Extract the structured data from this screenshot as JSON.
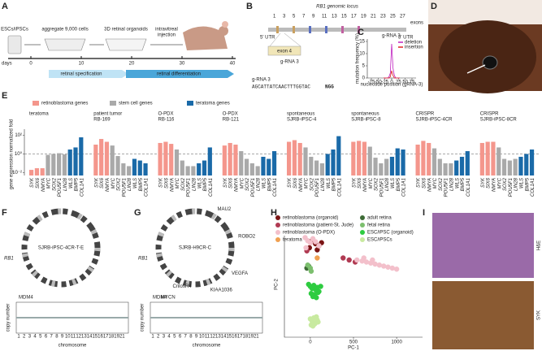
{
  "panel_labels": [
    "A",
    "B",
    "C",
    "D",
    "E",
    "F",
    "G",
    "H",
    "I"
  ],
  "panel_a": {
    "steps": [
      "ESCs/iPSCs",
      "aggregate 9,000 cells",
      "3D retinal organoids"
    ],
    "injection_lines": [
      "intravitreal",
      "injection"
    ],
    "axis_label": "days",
    "ticks": [
      0,
      10,
      20,
      30,
      40
    ],
    "phases": [
      "retinal specification",
      "retinal differentiation"
    ]
  },
  "panel_b": {
    "title": "RB1 genomic locus",
    "exons_label": "exons",
    "exon_numbers": [
      "1",
      "3",
      "5",
      "7",
      "9",
      "11",
      "13",
      "15",
      "17",
      "19",
      "21",
      "23",
      "25",
      "27"
    ],
    "utr5": "5' UTR",
    "utr3": "3' UTR",
    "zoom_exon": "exon 4",
    "grna": "g-RNA 3",
    "sequence_label": "g-RNA 3",
    "sequence": "AGCATTATCAACTTTGGTAC",
    "pam": "NGG"
  },
  "panel_f": {
    "title": "SJRB-iPSC-4CR-T-E",
    "gene": "RB1",
    "annotations": [
      "MDM4"
    ],
    "y_label": "copy number",
    "x_label": "chromosome"
  },
  "panel_g": {
    "title": "SJRB-H9CR-C",
    "gene": "RB1",
    "circos_labels": [
      "MAU2",
      "ROBO2",
      "VEGFA",
      "KIAA1036",
      "CrilosR4"
    ],
    "annotations": [
      "MDM4",
      "MYCN"
    ],
    "y_label": "copy number",
    "x_label": "chromosome"
  },
  "chromosomes": [
    "1",
    "2",
    "3",
    "4",
    "5",
    "6",
    "7",
    "8",
    "9",
    "10",
    "11",
    "12",
    "13",
    "14",
    "15",
    "16",
    "17",
    "18",
    "19",
    "21"
  ],
  "panel_i": {
    "stains": [
      "H&E",
      "SYK"
    ]
  },
  "chart_data": [
    {
      "type": "line",
      "title": "g-RNA 3",
      "x_label": "nucleotide position (gRNA-3)",
      "y_label": "mutation frequency (%)",
      "xlim": [
        -90,
        90
      ],
      "xticks": [
        -75,
        -50,
        -25,
        0,
        25,
        50,
        75
      ],
      "ylim": [
        0,
        16
      ],
      "yticks": [
        0,
        5,
        10,
        15
      ],
      "x": [
        -30,
        -25,
        -20,
        -15,
        -10,
        -5,
        0,
        5,
        10,
        15,
        20,
        25,
        30
      ],
      "series": [
        {
          "name": "deletion",
          "color": "#c020c0",
          "values": [
            0,
            0,
            0,
            0,
            0.5,
            2,
            14,
            4,
            1,
            0,
            0,
            0,
            0
          ]
        },
        {
          "name": "insertion",
          "color": "#e02020",
          "values": [
            0,
            0,
            0,
            0,
            0,
            0.5,
            3,
            1,
            0,
            0,
            0,
            0,
            0
          ]
        }
      ]
    },
    {
      "type": "grouped-bar",
      "y_label": "gene expression normalized fold",
      "log_scale": true,
      "ylim": [
        0.005,
        200
      ],
      "yticks": [
        {
          "value": 0.01,
          "label": "10⁻²"
        },
        {
          "value": 1,
          "label": "10⁰"
        },
        {
          "value": 100,
          "label": "10²"
        }
      ],
      "reference_line": 1,
      "series": [
        {
          "name": "retinoblastoma genes",
          "color": "#f4968c",
          "genes": [
            "SYK",
            "SIX6",
            "NMYA"
          ]
        },
        {
          "name": "stem cell genes",
          "color": "#a9a9a9",
          "genes": [
            "MYC",
            "SOX2",
            "POU5F1",
            "LIN28"
          ]
        },
        {
          "name": "teratoma genes",
          "color": "#1a6aa8",
          "genes": [
            "WLS",
            "BMP5",
            "COL1A1"
          ]
        }
      ],
      "groups": [
        {
          "labels": [
            "teratoma"
          ],
          "values": [
            0.02,
            0.03,
            0.03,
            0.8,
            1,
            1.2,
            0.9,
            3,
            5,
            60
          ]
        },
        {
          "labels": [
            "patient tumor",
            "RB-169"
          ],
          "values": [
            10,
            40,
            20,
            8,
            0.6,
            0.1,
            0.05,
            0.3,
            0.2,
            0.1
          ]
        },
        {
          "labels": [
            "O-PDX",
            "RB-116"
          ],
          "values": [
            15,
            20,
            12,
            3,
            0.2,
            0.05,
            0.05,
            0.1,
            0.2,
            5
          ]
        },
        {
          "labels": [
            "O-PDX",
            "RB-121"
          ],
          "values": [
            8,
            15,
            10,
            2,
            0.3,
            0.1,
            0.05,
            0.5,
            0.3,
            2
          ]
        },
        {
          "labels": [
            "spontaneous",
            "SJRB-iPSC-4"
          ],
          "values": [
            20,
            30,
            15,
            5,
            0.5,
            0.2,
            0.1,
            1,
            3,
            80
          ]
        },
        {
          "labels": [
            "spontaneous",
            "SJRB-iPSC-8"
          ],
          "values": [
            20,
            25,
            20,
            6,
            0.4,
            0.1,
            0.3,
            0.5,
            4,
            3
          ]
        },
        {
          "labels": [
            "CRISPR",
            "SJRB-iPSC-4CR"
          ],
          "values": [
            10,
            25,
            15,
            4,
            0.3,
            0.1,
            0.1,
            0.2,
            0.5,
            2
          ]
        },
        {
          "labels": [
            "CRISPR",
            "SJRB-iPSC-8CR"
          ],
          "values": [
            15,
            20,
            20,
            5,
            0.3,
            0.2,
            0.3,
            0.5,
            1,
            3
          ]
        }
      ]
    },
    {
      "type": "scatter",
      "x_label": "PC-1",
      "y_label": "PC-2",
      "xlim": [
        -300,
        1300
      ],
      "xticks": [
        0,
        500,
        1000
      ],
      "ylim": [
        -700,
        300
      ],
      "series": [
        {
          "name": "retinoblastoma (organoid)",
          "color": "#7a1414",
          "x": [
            20,
            60,
            100,
            -10,
            80,
            130
          ],
          "values": [
            250,
            220,
            200,
            180,
            160,
            230
          ]
        },
        {
          "name": "retinoblastoma (patient-St. Jude)",
          "color": "#b03a52",
          "x": [
            380,
            450,
            520,
            -40
          ],
          "values": [
            80,
            60,
            40,
            150
          ]
        },
        {
          "name": "retinoblastoma (O-PDX)",
          "color": "#f3c0cb",
          "x": [
            -60,
            -30,
            0,
            30,
            60,
            100,
            -50,
            540,
            600,
            650,
            700,
            750,
            800,
            850,
            900,
            950,
            1000,
            620,
            720
          ],
          "values": [
            280,
            250,
            230,
            270,
            240,
            200,
            180,
            60,
            50,
            40,
            30,
            20,
            10,
            0,
            -10,
            -20,
            -30,
            80,
            60
          ]
        },
        {
          "name": "teratoma",
          "color": "#f0a050",
          "x": [
            80
          ],
          "values": [
            80
          ]
        },
        {
          "name": "adult retina",
          "color": "#3d6b35",
          "x": [
            -40,
            -20
          ],
          "values": [
            -20,
            0
          ]
        },
        {
          "name": "fetal retina",
          "color": "#7cbf6e",
          "x": [
            -30,
            0,
            10
          ],
          "values": [
            10,
            -20,
            -50
          ]
        },
        {
          "name": "ESC/iPSC (organoid)",
          "color": "#2ecc40",
          "x": [
            -20,
            0,
            20,
            40,
            60,
            80,
            100,
            120,
            10,
            50,
            90,
            30,
            70
          ],
          "values": [
            -180,
            -200,
            -220,
            -190,
            -230,
            -210,
            -250,
            -200,
            -270,
            -280,
            -260,
            -300,
            -310
          ]
        },
        {
          "name": "ESC/iPSCs",
          "color": "#c8eaa0",
          "x": [
            0,
            20,
            40,
            60,
            80,
            10,
            50,
            90,
            30,
            70
          ],
          "values": [
            -520,
            -540,
            -510,
            -560,
            -530,
            -580,
            -570,
            -550,
            -590,
            -500
          ]
        }
      ]
    }
  ]
}
